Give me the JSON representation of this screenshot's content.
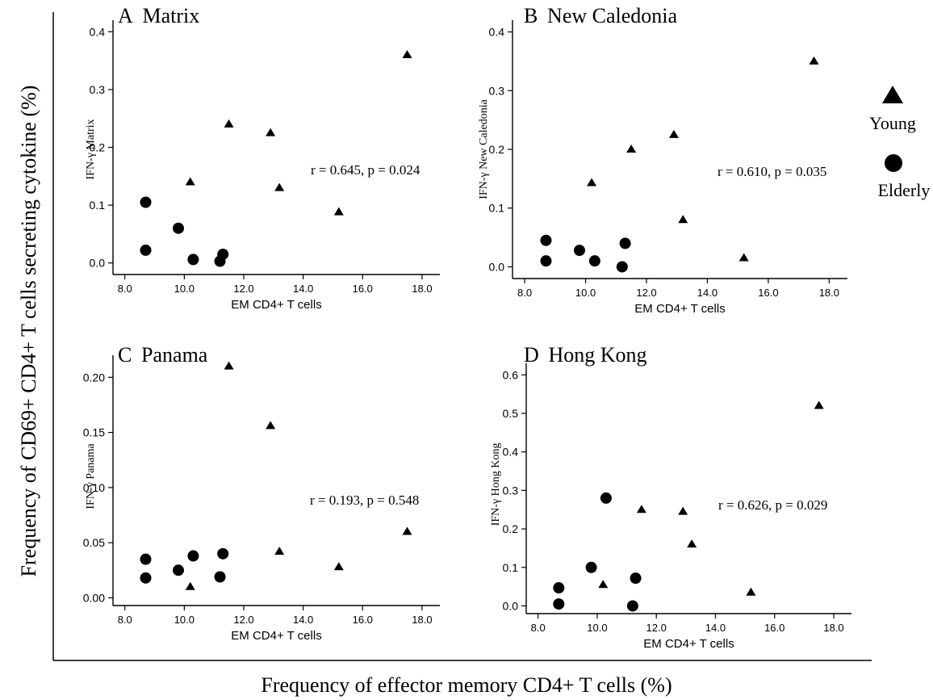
{
  "figure": {
    "ylabel": "Frequency of CD69+ CD4+ T cells secreting cytokine (%)",
    "xlabel": "Frequency of effector memory CD4+ T cells (%)",
    "legend": [
      {
        "label": "Young",
        "marker": "triangle"
      },
      {
        "label": "Elderly",
        "marker": "circle"
      }
    ]
  },
  "chart_data": [
    {
      "type": "scatter",
      "panel": "A",
      "title": "Matrix",
      "xlabel": "EM CD4+ T cells",
      "ylabel": "IFN-γ Matrix",
      "annotation": "r = 0.645, p = 0.024",
      "xlim": [
        7.6,
        18.6
      ],
      "ylim": [
        -0.02,
        0.42
      ],
      "xticks": [
        "8.0",
        "10.0",
        "12.0",
        "14.0",
        "16.0",
        "18.0"
      ],
      "xtick_values": [
        8,
        10,
        12,
        14,
        16,
        18
      ],
      "yticks": [
        "0.0",
        "0.1",
        "0.2",
        "0.3",
        "0.4"
      ],
      "ytick_values": [
        0,
        0.1,
        0.2,
        0.3,
        0.4
      ],
      "series": [
        {
          "name": "Young",
          "marker": "triangle",
          "points": [
            [
              10.2,
              0.14
            ],
            [
              11.5,
              0.24
            ],
            [
              12.9,
              0.225
            ],
            [
              13.2,
              0.13
            ],
            [
              15.2,
              0.088
            ],
            [
              17.5,
              0.36
            ]
          ]
        },
        {
          "name": "Elderly",
          "marker": "circle",
          "points": [
            [
              8.7,
              0.105
            ],
            [
              8.7,
              0.022
            ],
            [
              9.8,
              0.06
            ],
            [
              10.3,
              0.006
            ],
            [
              11.2,
              0.003
            ],
            [
              11.3,
              0.015
            ]
          ]
        }
      ]
    },
    {
      "type": "scatter",
      "panel": "B",
      "title": "New Caledonia",
      "xlabel": "EM CD4+ T cells",
      "ylabel": "IFN-γ New Caledonia",
      "annotation": "r = 0.610, p = 0.035",
      "xlim": [
        7.6,
        18.6
      ],
      "ylim": [
        -0.02,
        0.42
      ],
      "xticks": [
        "8.0",
        "10.0",
        "12.0",
        "14.0",
        "16.0",
        "18.0"
      ],
      "xtick_values": [
        8,
        10,
        12,
        14,
        16,
        18
      ],
      "yticks": [
        "0.0",
        "0.1",
        "0.2",
        "0.3",
        "0.4"
      ],
      "ytick_values": [
        0,
        0.1,
        0.2,
        0.3,
        0.4
      ],
      "series": [
        {
          "name": "Young",
          "marker": "triangle",
          "points": [
            [
              10.2,
              0.143
            ],
            [
              11.5,
              0.2
            ],
            [
              12.9,
              0.225
            ],
            [
              13.2,
              0.08
            ],
            [
              15.2,
              0.015
            ],
            [
              17.5,
              0.35
            ]
          ]
        },
        {
          "name": "Elderly",
          "marker": "circle",
          "points": [
            [
              8.7,
              0.045
            ],
            [
              8.7,
              0.01
            ],
            [
              9.8,
              0.028
            ],
            [
              10.3,
              0.01
            ],
            [
              11.2,
              0.0
            ],
            [
              11.3,
              0.04
            ]
          ]
        }
      ]
    },
    {
      "type": "scatter",
      "panel": "C",
      "title": "Panama",
      "xlabel": "EM CD4+ T cells",
      "ylabel": "IFN-γ Panama",
      "annotation": "r = 0.193, p = 0.548",
      "xlim": [
        7.6,
        18.6
      ],
      "ylim": [
        -0.007,
        0.22
      ],
      "xticks": [
        "8.0",
        "10.0",
        "12.0",
        "14.0",
        "16.0",
        "18.0"
      ],
      "xtick_values": [
        8,
        10,
        12,
        14,
        16,
        18
      ],
      "yticks": [
        "0.00",
        "0.05",
        "0.10",
        "0.15",
        "0.20"
      ],
      "ytick_values": [
        0,
        0.05,
        0.1,
        0.15,
        0.2
      ],
      "series": [
        {
          "name": "Young",
          "marker": "triangle",
          "points": [
            [
              10.2,
              0.01
            ],
            [
              11.5,
              0.21
            ],
            [
              12.9,
              0.156
            ],
            [
              13.2,
              0.042
            ],
            [
              15.2,
              0.028
            ],
            [
              17.5,
              0.06
            ]
          ]
        },
        {
          "name": "Elderly",
          "marker": "circle",
          "points": [
            [
              8.7,
              0.035
            ],
            [
              8.7,
              0.018
            ],
            [
              9.8,
              0.025
            ],
            [
              10.3,
              0.038
            ],
            [
              11.2,
              0.019
            ],
            [
              11.3,
              0.04
            ]
          ]
        }
      ]
    },
    {
      "type": "scatter",
      "panel": "D",
      "title": "Hong Kong",
      "xlabel": "EM CD4+ T cells",
      "ylabel": "IFN-γ Hong Kong",
      "annotation": "r = 0.626, p = 0.029",
      "xlim": [
        7.6,
        18.6
      ],
      "ylim": [
        -0.02,
        0.63
      ],
      "xticks": [
        "8.0",
        "10.0",
        "12.0",
        "14.0",
        "16.0",
        "18.0"
      ],
      "xtick_values": [
        8,
        10,
        12,
        14,
        16,
        18
      ],
      "yticks": [
        "0.0",
        "0.1",
        "0.2",
        "0.3",
        "0.4",
        "0.5",
        "0.6"
      ],
      "ytick_values": [
        0,
        0.1,
        0.2,
        0.3,
        0.4,
        0.5,
        0.6
      ],
      "series": [
        {
          "name": "Young",
          "marker": "triangle",
          "points": [
            [
              10.2,
              0.055
            ],
            [
              11.5,
              0.25
            ],
            [
              12.9,
              0.245
            ],
            [
              13.2,
              0.16
            ],
            [
              15.2,
              0.035
            ],
            [
              17.5,
              0.52
            ]
          ]
        },
        {
          "name": "Elderly",
          "marker": "circle",
          "points": [
            [
              8.7,
              0.047
            ],
            [
              8.7,
              0.005
            ],
            [
              9.8,
              0.1
            ],
            [
              10.3,
              0.28
            ],
            [
              11.2,
              0.0
            ],
            [
              11.3,
              0.072
            ]
          ]
        }
      ]
    }
  ]
}
